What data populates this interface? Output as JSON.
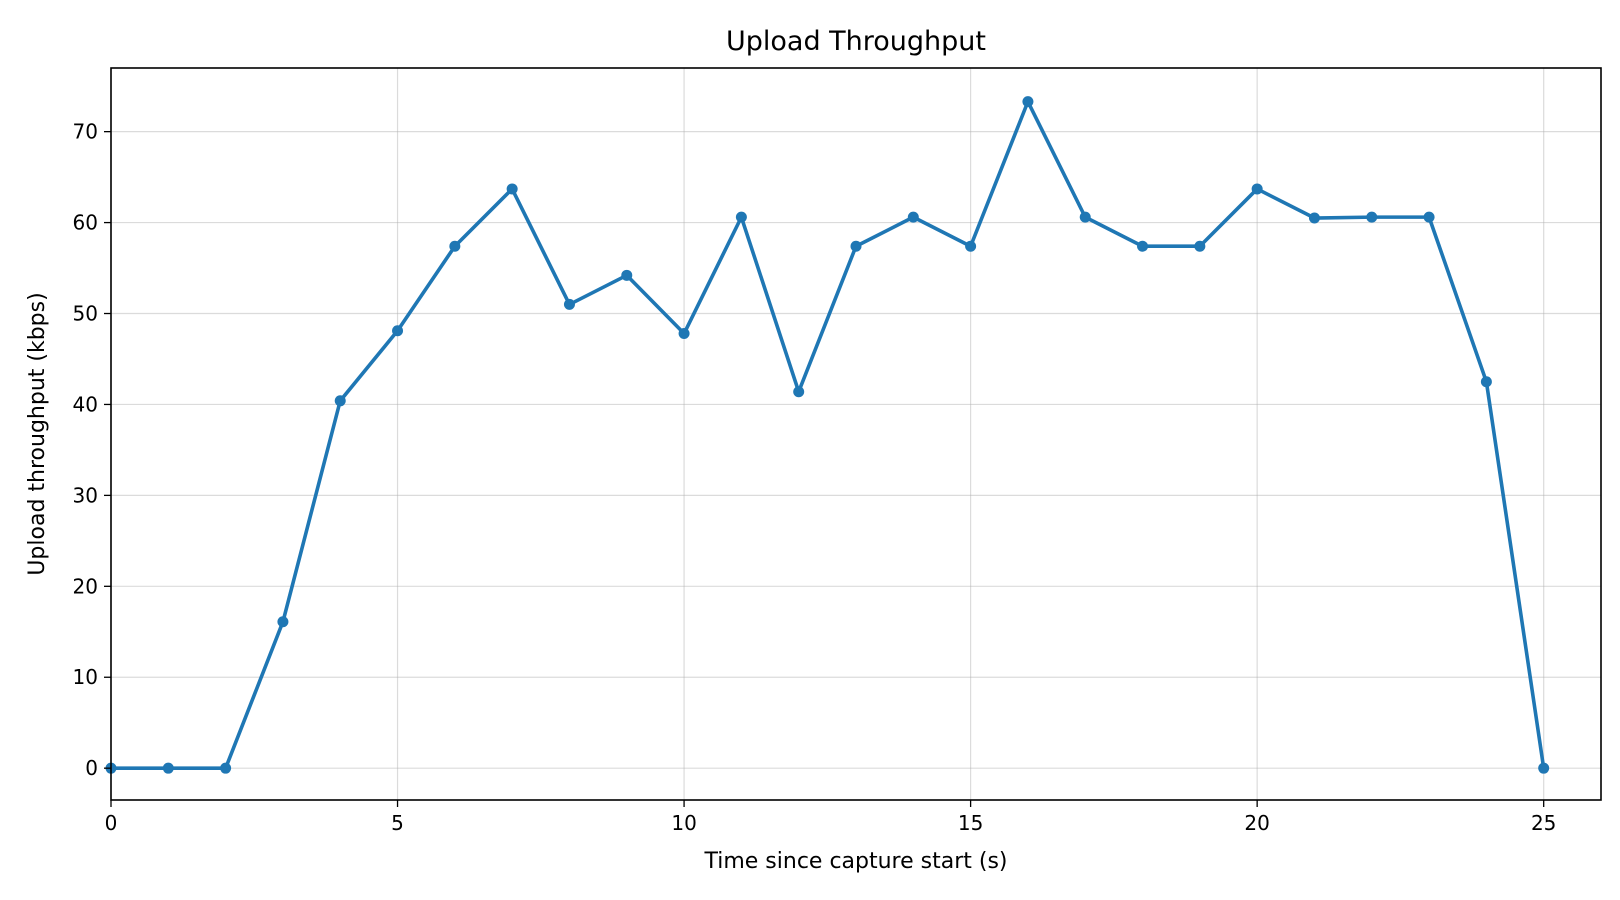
{
  "chart_data": {
    "type": "line",
    "title": "Upload Throughput",
    "xlabel": "Time since capture start (s)",
    "ylabel": "Upload throughput (kbps)",
    "xlim": [
      0,
      26
    ],
    "ylim": [
      -3.5,
      77
    ],
    "xticks": [
      0,
      5,
      10,
      15,
      20,
      25
    ],
    "yticks": [
      0,
      10,
      20,
      30,
      40,
      50,
      60,
      70
    ],
    "grid": true,
    "legend": "none",
    "series": [
      {
        "color": "#1f77b4",
        "marker": "circle",
        "x": [
          0,
          1,
          2,
          3,
          4,
          5,
          6,
          7,
          8,
          9,
          10,
          11,
          12,
          13,
          14,
          15,
          16,
          17,
          18,
          19,
          20,
          21,
          22,
          23,
          24,
          25
        ],
        "y": [
          0,
          0,
          0,
          16.1,
          40.4,
          48.1,
          57.4,
          63.7,
          51.0,
          54.2,
          47.8,
          60.6,
          41.4,
          57.4,
          60.6,
          57.4,
          73.3,
          60.6,
          57.4,
          57.4,
          63.7,
          60.5,
          60.6,
          60.6,
          42.5,
          0
        ]
      }
    ]
  }
}
